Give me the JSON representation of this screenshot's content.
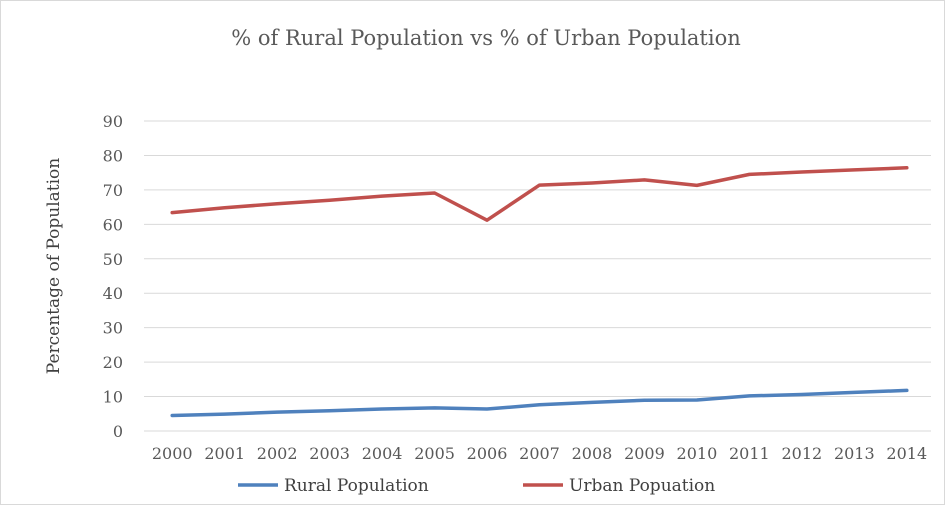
{
  "chart_data": {
    "type": "line",
    "title": "% of Rural Population vs % of Urban Population",
    "xlabel": "",
    "ylabel": "Percentage of Population",
    "ylim": [
      0,
      90
    ],
    "yticks": [
      0,
      10,
      20,
      30,
      40,
      50,
      60,
      70,
      80,
      90
    ],
    "grid": true,
    "legend_position": "bottom",
    "categories": [
      "2000",
      "2001",
      "2002",
      "2003",
      "2004",
      "2005",
      "2006",
      "2007",
      "2008",
      "2009",
      "2010",
      "2011",
      "2012",
      "2013",
      "2014"
    ],
    "series": [
      {
        "name": "Rural Population",
        "color": "#4f81bd",
        "values": [
          4.5,
          4.9,
          5.5,
          5.9,
          6.4,
          6.7,
          6.4,
          7.6,
          8.3,
          8.9,
          9.0,
          10.2,
          10.6,
          11.2,
          11.8
        ]
      },
      {
        "name": "Urban Popuation",
        "color": "#c0504d",
        "values": [
          63.4,
          64.8,
          66.0,
          67.0,
          68.2,
          69.1,
          61.2,
          71.4,
          72.0,
          72.9,
          71.3,
          74.5,
          75.2,
          75.8,
          76.4
        ]
      }
    ]
  }
}
